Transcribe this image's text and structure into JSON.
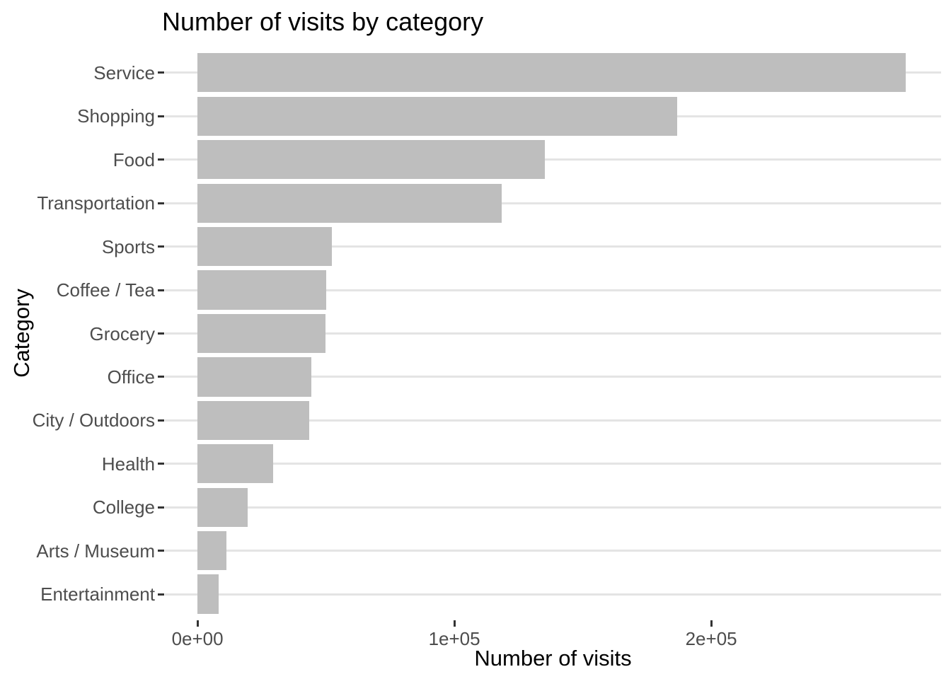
{
  "chart_data": {
    "type": "bar",
    "orientation": "horizontal",
    "title": "Number of visits by category",
    "xlabel": "Number of visits",
    "ylabel": "Category",
    "categories": [
      "Service",
      "Shopping",
      "Food",
      "Transportation",
      "Sports",
      "Coffee / Tea",
      "Grocery",
      "Office",
      "City / Outdoors",
      "Health",
      "College",
      "Arts / Museum",
      "Entertainment"
    ],
    "values": [
      275800,
      186700,
      135100,
      118400,
      52300,
      50000,
      49800,
      44200,
      43400,
      29500,
      19600,
      11400,
      8300
    ],
    "x_ticks": [
      {
        "value": 0,
        "label": "0e+00"
      },
      {
        "value": 100000,
        "label": "1e+05"
      },
      {
        "value": 200000,
        "label": "2e+05"
      }
    ],
    "xlim": [
      -12700,
      289500
    ],
    "grid": "horizontal-major-only",
    "legend": "none",
    "colors": {
      "bar_fill": "#BEBEBE",
      "gridline": "#E4E4E4",
      "axis_text": "#4D4D4D",
      "tick_mark": "#333333",
      "title_text": "#000000"
    }
  }
}
